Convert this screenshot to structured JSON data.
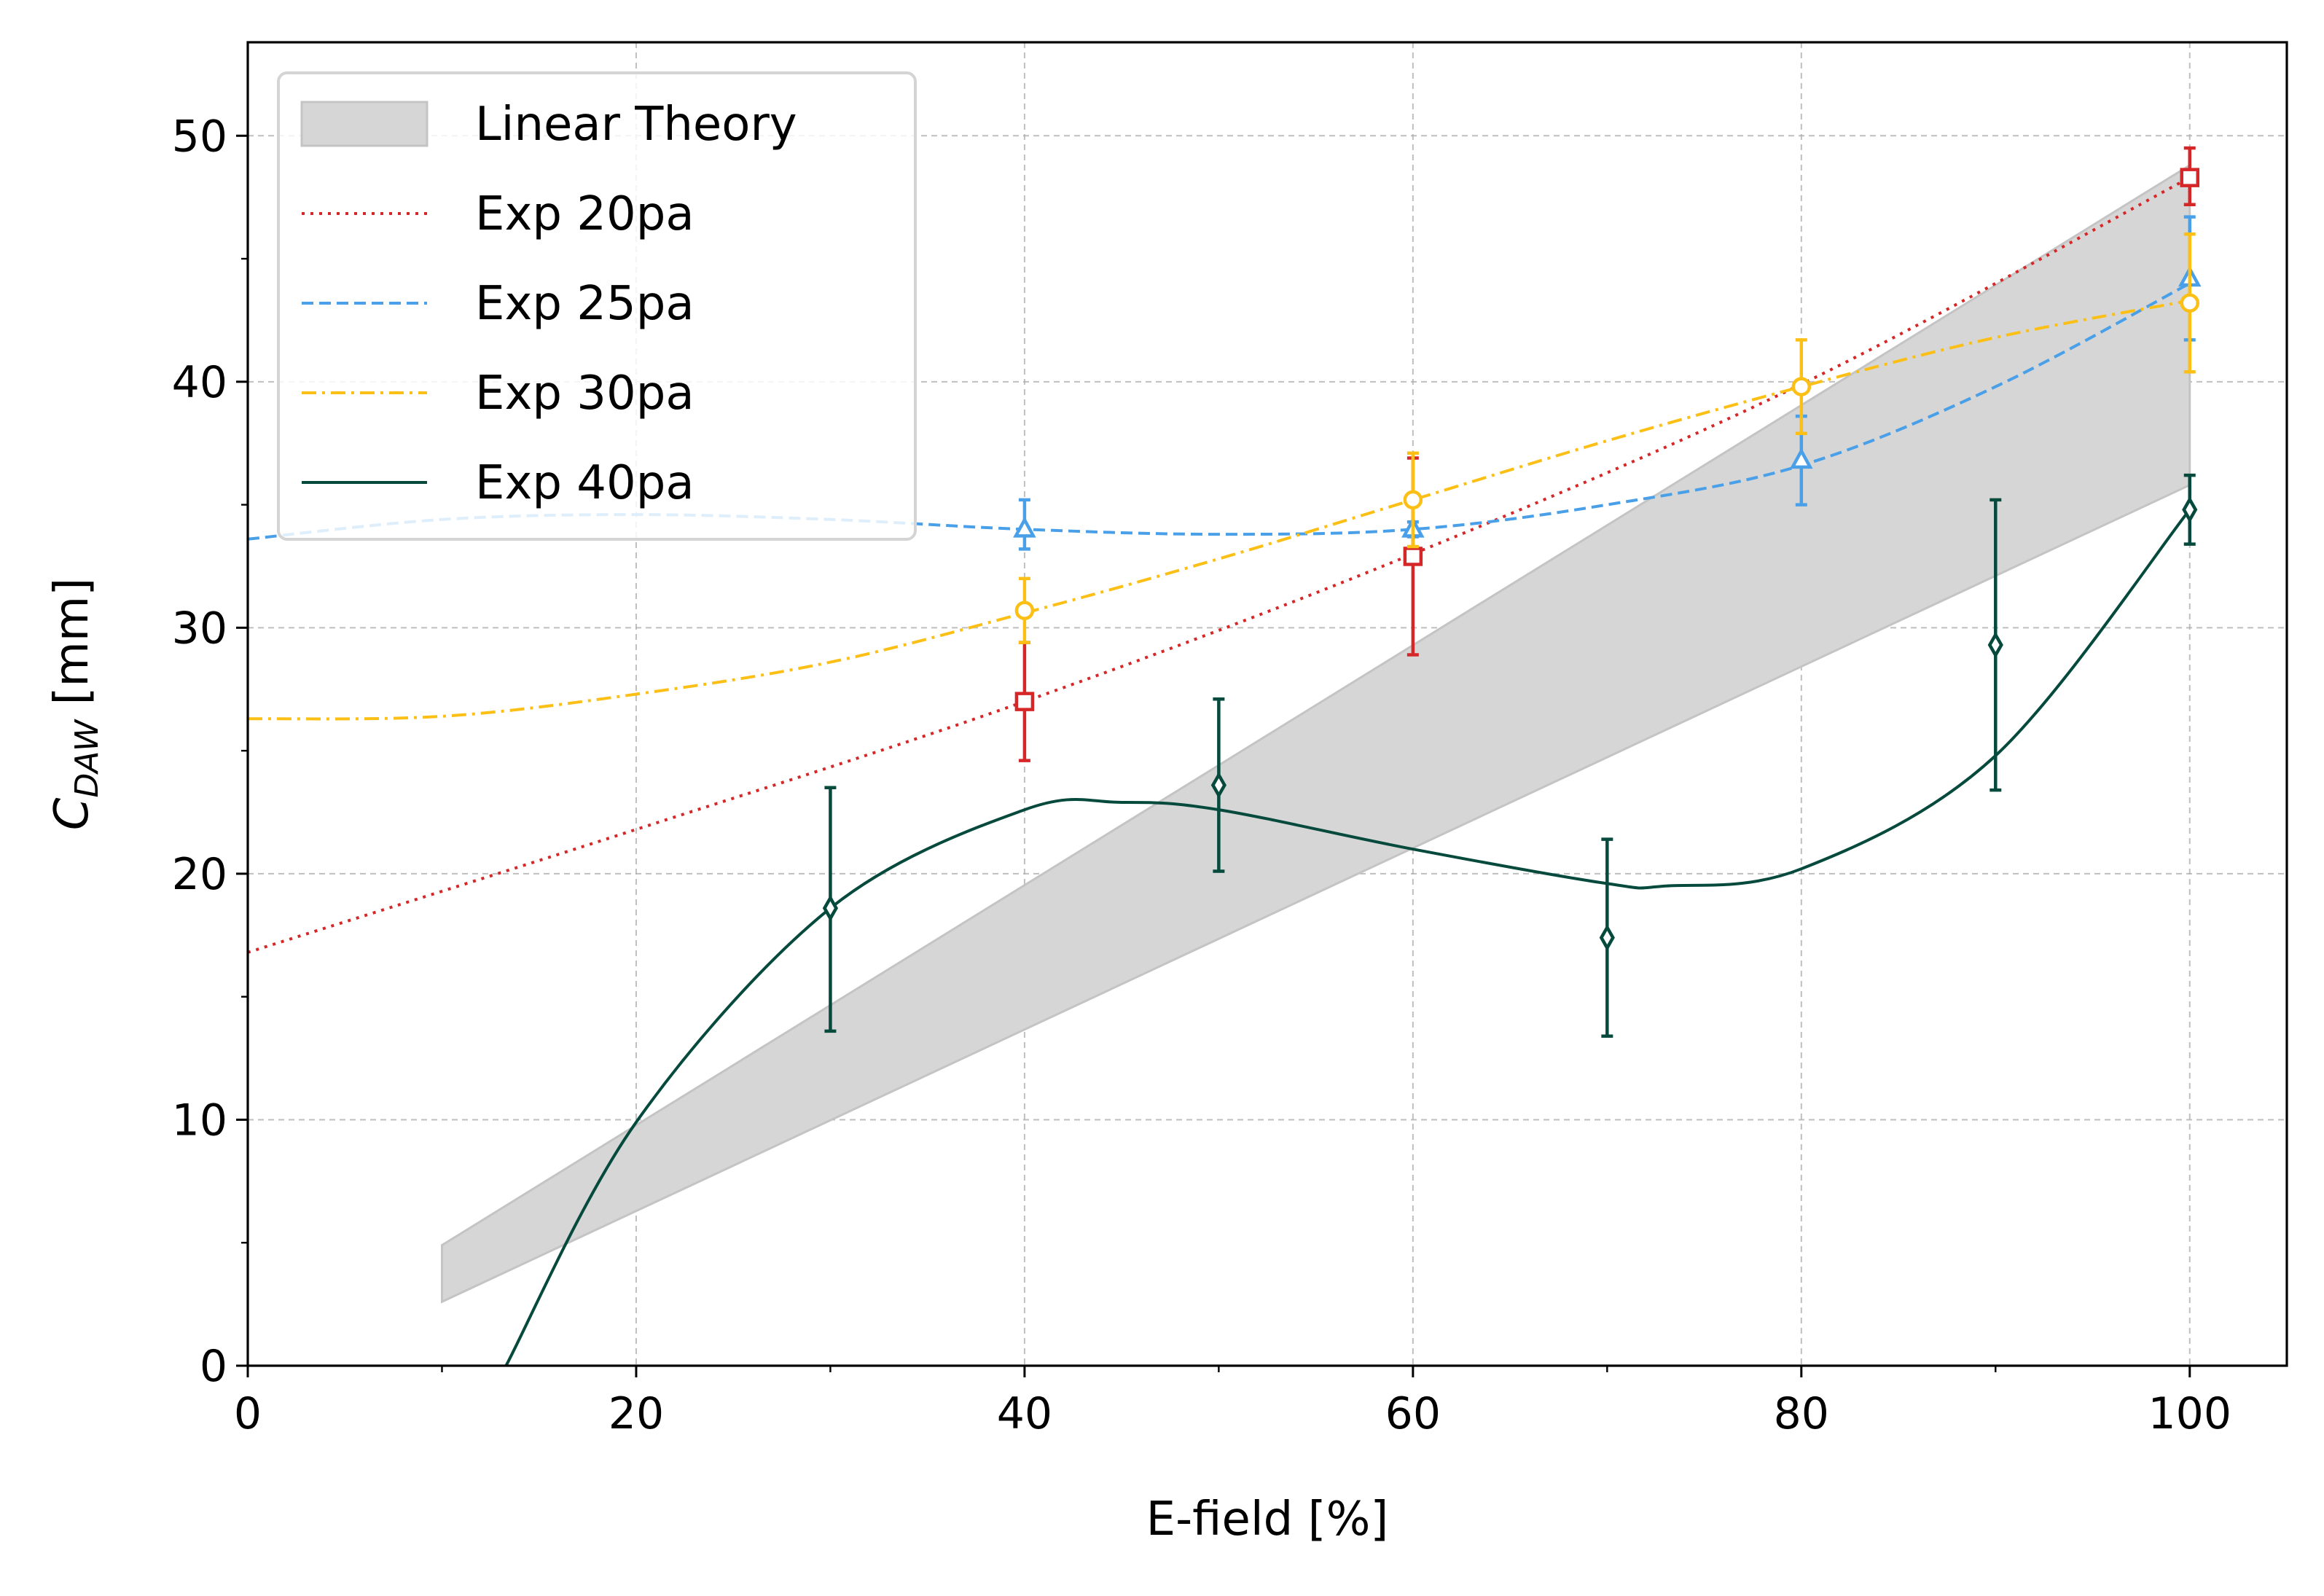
{
  "chart_data": {
    "type": "line",
    "xlabel": "E-field [%]",
    "ylabel_main": "C",
    "ylabel_sub": "DAW",
    "ylabel_unit": " [mm]",
    "xlim": [
      0,
      105
    ],
    "ylim": [
      0,
      53.8
    ],
    "x_ticks": [
      0,
      20,
      40,
      60,
      80,
      100
    ],
    "y_ticks": [
      0,
      10,
      20,
      30,
      40,
      50
    ],
    "x_minor_ticks": [
      10,
      30,
      50,
      70,
      90
    ],
    "y_minor_ticks": [
      5,
      15,
      25,
      35,
      45
    ],
    "grid": true,
    "legend_position": "top-left",
    "band": {
      "name": "Linear Theory",
      "x": [
        10,
        100
      ],
      "lower": [
        2.6,
        35.8
      ],
      "upper": [
        4.9,
        48.8
      ],
      "color": "#d6d6d6",
      "edge_color": "#c4c4c4"
    },
    "series": [
      {
        "name": "Exp 20pa",
        "color": "#d62728",
        "linestyle": "dotted",
        "marker": "square",
        "fit_x": [
          0,
          20,
          40,
          60,
          80,
          100
        ],
        "fit_y": [
          16.8,
          21.8,
          27.0,
          33.0,
          39.9,
          48.3
        ],
        "x": [
          40,
          60,
          100
        ],
        "y": [
          27.0,
          32.9,
          48.3
        ],
        "yerr_low": [
          2.4,
          4.0,
          1.1
        ],
        "yerr_high": [
          2.4,
          4.0,
          1.2
        ]
      },
      {
        "name": "Exp 25pa",
        "color": "#4aa0e8",
        "linestyle": "dashed",
        "marker": "triangle",
        "fit_x": [
          0,
          10,
          20,
          30,
          40,
          50,
          60,
          70,
          80,
          90,
          100
        ],
        "fit_y": [
          33.6,
          34.4,
          34.6,
          34.4,
          34.0,
          33.8,
          34.0,
          35.0,
          36.6,
          39.8,
          44.0
        ],
        "x": [
          40,
          60,
          80,
          100
        ],
        "y": [
          34.0,
          34.0,
          36.8,
          44.2
        ],
        "yerr_low": [
          0.8,
          0.3,
          1.8,
          2.5
        ],
        "yerr_high": [
          1.2,
          0.3,
          1.8,
          2.5
        ]
      },
      {
        "name": "Exp 30pa",
        "color": "#fbbf16",
        "linestyle": "dashdot",
        "marker": "circle",
        "fit_x": [
          0,
          10,
          20,
          30,
          40,
          50,
          60,
          70,
          80,
          90,
          100
        ],
        "fit_y": [
          26.3,
          26.4,
          27.3,
          28.6,
          30.6,
          32.8,
          35.2,
          37.6,
          39.8,
          41.8,
          43.3
        ],
        "x": [
          40,
          60,
          80,
          100
        ],
        "y": [
          30.7,
          35.2,
          39.8,
          43.2
        ],
        "yerr_low": [
          1.3,
          1.9,
          1.9,
          2.8
        ],
        "yerr_high": [
          1.3,
          1.9,
          1.9,
          2.8
        ]
      },
      {
        "name": "Exp 40pa",
        "color": "#054a3c",
        "linestyle": "solid",
        "marker": "diamond",
        "fit_x": [
          13.3,
          20,
          30,
          40,
          45,
          50,
          60,
          70,
          73,
          80,
          90,
          100
        ],
        "fit_y": [
          0,
          9.9,
          18.6,
          22.6,
          22.9,
          22.6,
          21.0,
          19.6,
          19.5,
          20.2,
          24.8,
          34.8
        ],
        "x": [
          30,
          50,
          70,
          90,
          100
        ],
        "y": [
          18.6,
          23.6,
          17.4,
          29.3,
          34.8
        ],
        "yerr_low": [
          5.0,
          3.5,
          4.0,
          5.9,
          1.4
        ],
        "yerr_high": [
          4.9,
          3.5,
          4.0,
          5.9,
          1.4
        ]
      }
    ]
  }
}
